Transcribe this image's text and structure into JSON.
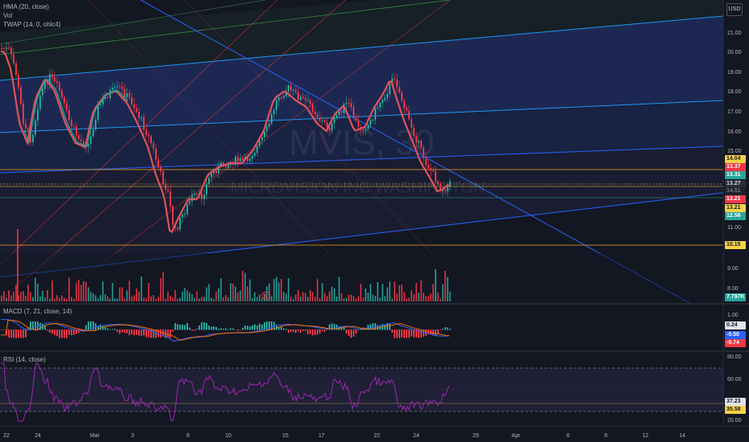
{
  "legend": {
    "hma": "HMA (20, close)",
    "vol": "Vol",
    "twap": "TWAP (14, 0, ohlc4)",
    "macd": "MACD (7, 21, close, 14)",
    "rsi": "RSI (14, close)"
  },
  "currency": "USD",
  "watermark": {
    "symbol": "MVIS, 30",
    "name": "MICROVISION INC WASHINGTON"
  },
  "price_axis": [
    "21.00",
    "20.00",
    "19.00",
    "18.00",
    "17.00",
    "16.00",
    "15.00",
    "11.00",
    "10.00",
    "9.00",
    "8.00"
  ],
  "price_tags": [
    {
      "value": "14.04",
      "bg": "#f5d347",
      "fg": "#131722"
    },
    {
      "value": "13.37",
      "bg": "#f23645",
      "fg": "#ffffff"
    },
    {
      "value": "13.31",
      "bg": "#26a69a",
      "fg": "#ffffff"
    },
    {
      "value": "13.27",
      "bg": "#2a2e39",
      "fg": "#d1d4dc"
    },
    {
      "value": "14.51",
      "bg": "#1e222d",
      "fg": "#787b86"
    },
    {
      "value": "13.21",
      "bg": "#f23645",
      "fg": "#ffffff"
    },
    {
      "value": "13.21",
      "bg": "#f5d347",
      "fg": "#131722"
    },
    {
      "value": "12.56",
      "bg": "#26a69a",
      "fg": "#ffffff"
    },
    {
      "value": "10.15",
      "bg": "#f5d347",
      "fg": "#131722"
    },
    {
      "value": "7.797K",
      "bg": "#26a69a",
      "fg": "#ffffff"
    }
  ],
  "macd_axis": [
    "1.00",
    "-1.00"
  ],
  "macd_tags": [
    {
      "value": "0.24",
      "bg": "#e0e3eb",
      "fg": "#131722"
    },
    {
      "value": "-0.50",
      "bg": "#2962ff",
      "fg": "#ffffff"
    },
    {
      "value": "-0.74",
      "bg": "#f23645",
      "fg": "#ffffff"
    }
  ],
  "rsi_axis": [
    "80.00",
    "60.00",
    "20.00"
  ],
  "rsi_tags": [
    {
      "value": "37.23",
      "bg": "#e0e3eb",
      "fg": "#131722"
    },
    {
      "value": "35.58",
      "bg": "#f5d347",
      "fg": "#131722"
    }
  ],
  "time_axis": [
    "22",
    "24",
    "Mar",
    "3",
    "8",
    "10",
    "15",
    "17",
    "22",
    "24",
    "29",
    "Apr",
    "6",
    "8",
    "12",
    "14"
  ],
  "earnings_marker": "E",
  "colors": {
    "bg": "#131722",
    "up": "#26a69a",
    "down": "#f23645",
    "hma": "#e0525a",
    "rsi": "#7e57c2",
    "macd": "#2962ff",
    "signal": "#ff6d00"
  }
}
